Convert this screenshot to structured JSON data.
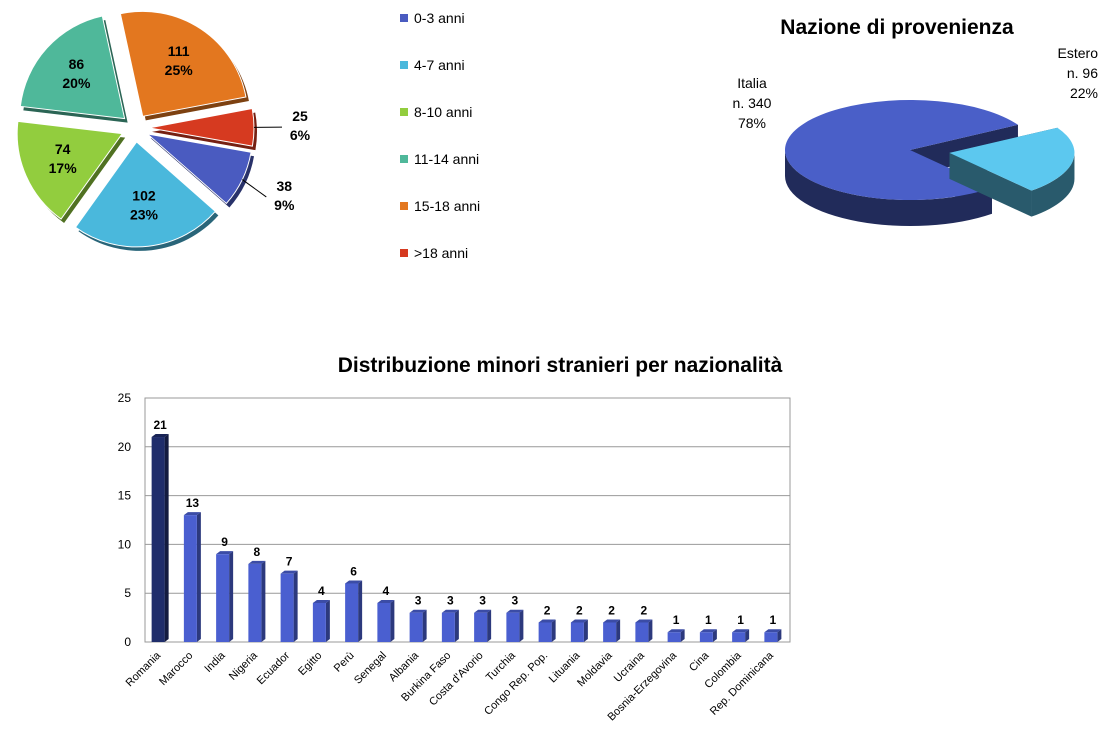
{
  "chart_data": [
    {
      "type": "pie",
      "categories": [
        "0-3 anni",
        "4-7 anni",
        "8-10 anni",
        "11-14 anni",
        "15-18 anni",
        ">18 anni"
      ],
      "values": [
        38,
        102,
        74,
        86,
        111,
        25
      ],
      "percent_labels": [
        "9%",
        "23%",
        "17%",
        "20%",
        "25%",
        "6%"
      ],
      "colors": [
        "#4a5bc0",
        "#4ab8dc",
        "#92cd3e",
        "#4fb89a",
        "#e3771f",
        "#d63a20"
      ],
      "legend": "right"
    },
    {
      "type": "pie3d",
      "title": "Nazione di provenienza",
      "categories": [
        "Italia",
        "Estero"
      ],
      "values": [
        340,
        96
      ],
      "value_labels": [
        "n. 340",
        "n. 96"
      ],
      "percent_labels": [
        "78%",
        "22%"
      ],
      "colors": [
        "#4a5fc8",
        "#5cc8ef"
      ]
    },
    {
      "type": "bar",
      "title": "Distribuzione minori stranieri per nazionalità",
      "categories": [
        "Romania",
        "Marocco",
        "India",
        "Nigeria",
        "Ecuador",
        "Egitto",
        "Perù",
        "Senegal",
        "Albania",
        "Burkina Faso",
        "Costa d'Avorio",
        "Turchia",
        "Congo Rep. Pop.",
        "Lituania",
        "Moldavia",
        "Ucraina",
        "Bosnia-Erzegovina",
        "Cina",
        "Colombia",
        "Rep. Dominicana"
      ],
      "values": [
        21,
        13,
        9,
        8,
        7,
        4,
        6,
        4,
        3,
        3,
        3,
        3,
        2,
        2,
        2,
        2,
        1,
        1,
        1,
        1
      ],
      "colors": [
        "#1f2d6b",
        "#4a5fd0",
        "#4a5fd0",
        "#4a5fd0",
        "#4a5fd0",
        "#4a5fd0",
        "#4a5fd0",
        "#4a5fd0",
        "#4a5fd0",
        "#4a5fd0",
        "#4a5fd0",
        "#4a5fd0",
        "#4a5fd0",
        "#4a5fd0",
        "#4a5fd0",
        "#4a5fd0",
        "#4a5fd0",
        "#4a5fd0",
        "#4a5fd0",
        "#4a5fd0"
      ],
      "ylim": [
        0,
        25
      ],
      "yticks": [
        0,
        5,
        10,
        15,
        20,
        25
      ],
      "grid": true
    }
  ]
}
